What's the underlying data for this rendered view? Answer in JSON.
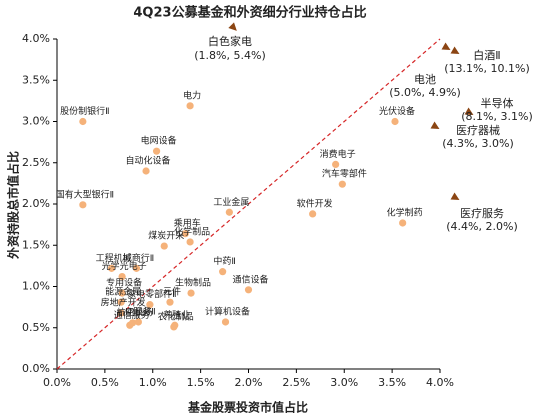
{
  "chart_data": {
    "type": "scatter",
    "title": "4Q23公募基金和外资细分行业持仓占比",
    "x_label": "基金股票投资市值占比",
    "y_label": "外资持股总市值占比",
    "xlim": [
      0,
      4
    ],
    "ylim": [
      0,
      4
    ],
    "xticks": [
      {
        "value": 0,
        "label": "0.0%"
      },
      {
        "value": 0.5,
        "label": "0.5%"
      },
      {
        "value": 1,
        "label": "1.0%"
      },
      {
        "value": 1.5,
        "label": "1.5%"
      },
      {
        "value": 2,
        "label": "2.0%"
      },
      {
        "value": 2.5,
        "label": "2.5%"
      },
      {
        "value": 3,
        "label": "3.0%"
      },
      {
        "value": 3.5,
        "label": "3.5%"
      },
      {
        "value": 4,
        "label": "4.0%"
      }
    ],
    "yticks": [
      {
        "value": 0,
        "label": "0.0%"
      },
      {
        "value": 0.5,
        "label": "0.5%"
      },
      {
        "value": 1,
        "label": "1.0%"
      },
      {
        "value": 1.5,
        "label": "1.5%"
      },
      {
        "value": 2,
        "label": "2.0%"
      },
      {
        "value": 2.5,
        "label": "2.5%"
      },
      {
        "value": 3,
        "label": "3.0%"
      },
      {
        "value": 3.5,
        "label": "3.5%"
      },
      {
        "value": 4,
        "label": "4.0%"
      }
    ],
    "diagonal": true,
    "diagonal_color": "#d62728",
    "color": "#f5b27a",
    "labels": [
      "股份制银行Ⅱ",
      "电力",
      "电网设备",
      "自动化设备",
      "国有大型银行Ⅱ",
      "工业金属",
      "乘用车",
      "煤炭开采",
      "化学制品",
      "工程机械",
      "城商行Ⅱ",
      "光学光电子",
      "中药Ⅱ",
      "生物制品",
      "通信设备",
      "专用设备",
      "元件",
      "能源金属",
      "家电零部件Ⅱ",
      "房地产开发",
      "IT服务Ⅱ",
      "养殖业",
      "航空机场",
      "计算机设备",
      "农化制品",
      "通信服务",
      "光伏设备",
      "消费电子",
      "汽车零部件",
      "软件开发",
      "化学制药"
    ],
    "x": [
      0.27,
      1.39,
      1.04,
      0.93,
      0.27,
      1.8,
      1.34,
      1.12,
      1.39,
      0.57,
      0.83,
      0.68,
      1.73,
      1.4,
      2.0,
      0.68,
      1.18,
      0.67,
      0.97,
      0.67,
      0.85,
      1.23,
      0.79,
      1.76,
      1.22,
      0.76,
      3.53,
      2.91,
      2.98,
      2.67,
      3.61
    ],
    "y": [
      3.0,
      3.19,
      2.64,
      2.4,
      1.99,
      1.9,
      1.64,
      1.49,
      1.54,
      1.22,
      1.22,
      1.12,
      1.18,
      0.92,
      0.96,
      0.92,
      0.81,
      0.81,
      0.78,
      0.68,
      0.57,
      0.53,
      0.56,
      0.57,
      0.51,
      0.53,
      3.0,
      2.48,
      2.24,
      1.88,
      1.77
    ],
    "outliers": [
      {
        "name": "白色家电",
        "label": "(1.8%, 5.4%)"
      },
      {
        "name": "白酒Ⅱ",
        "label": "(13.1%, 10.1%)"
      },
      {
        "name": "电池",
        "label": "(5.0%, 4.9%)"
      },
      {
        "name": "半导体",
        "label": "(8.1%, 3.1%)"
      },
      {
        "name": "医疗器械",
        "label": "(4.3%, 3.0%)"
      },
      {
        "name": "医疗服务",
        "label": "(4.4%, 2.0%)"
      }
    ]
  }
}
